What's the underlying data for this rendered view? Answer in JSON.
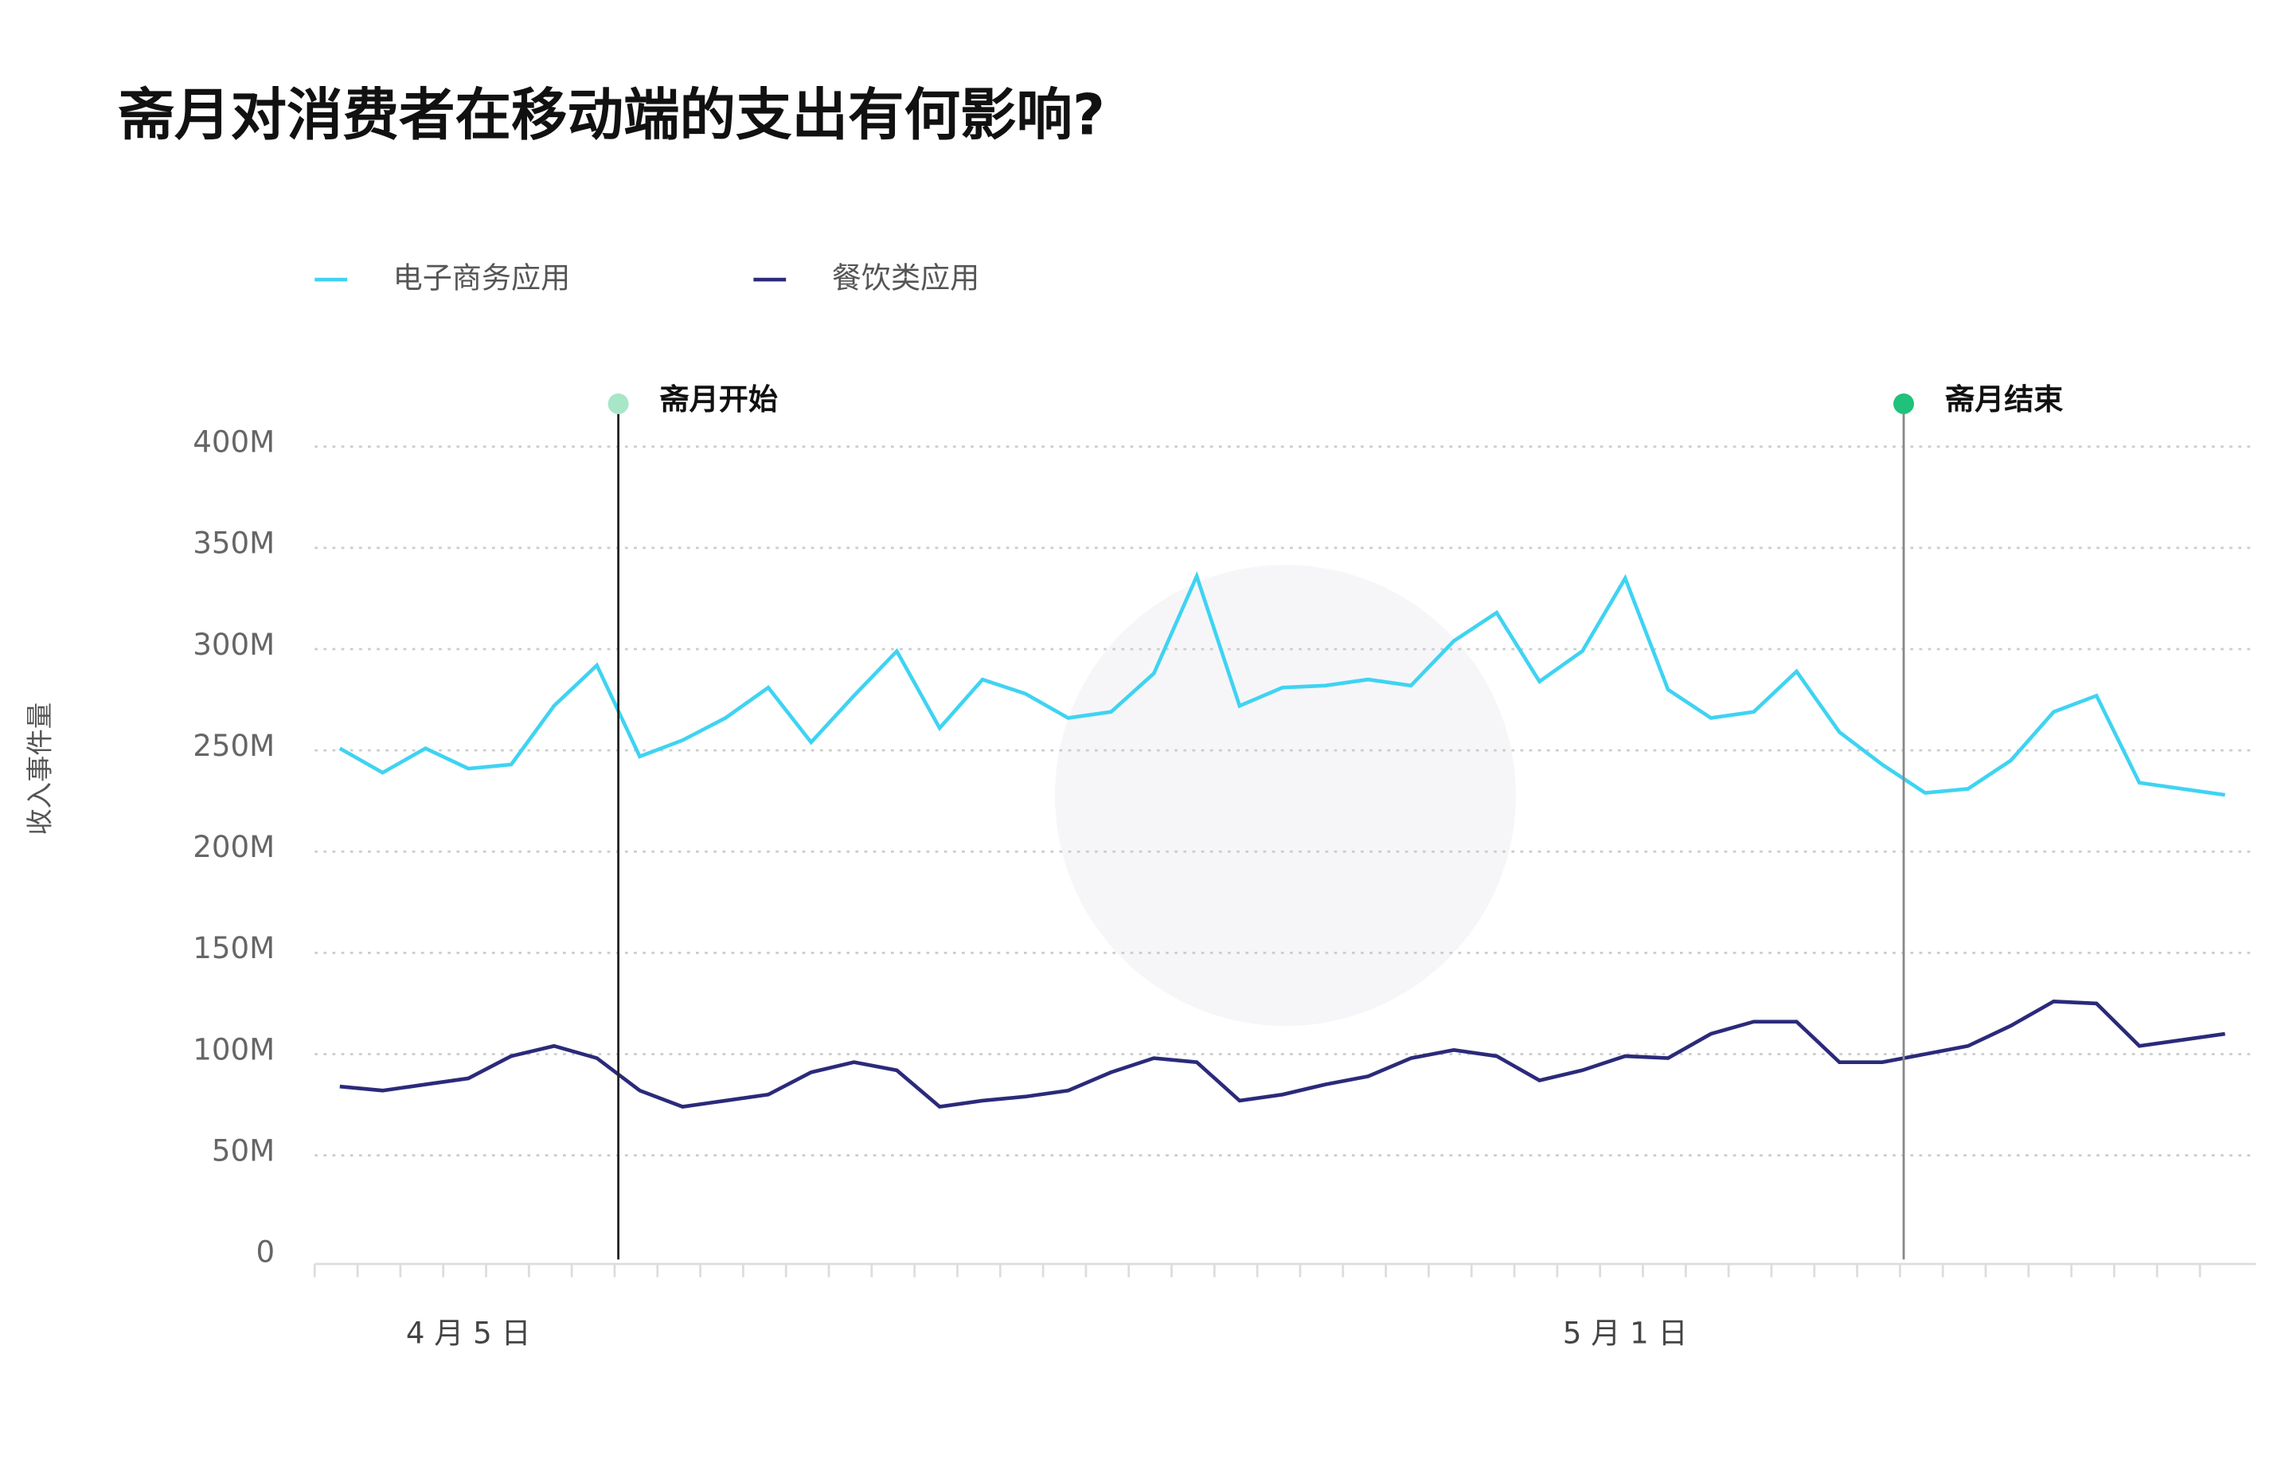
{
  "chart_data": {
    "type": "line",
    "title": "斋月对消费者在移动端的支出有何影响?",
    "y_label": "收入事件量",
    "categories": [
      null,
      null,
      null,
      "4 月 5 日",
      null,
      null,
      null,
      null,
      null,
      null,
      null,
      null,
      null,
      null,
      null,
      null,
      null,
      null,
      null,
      null,
      null,
      null,
      null,
      null,
      null,
      null,
      null,
      null,
      null,
      null,
      "5 月 1 日",
      null,
      null,
      null,
      null,
      null,
      null,
      null,
      null,
      null,
      null,
      null,
      null,
      null,
      null
    ],
    "series": [
      {
        "name": "电子商务应用",
        "color": "#3fd3f2",
        "values": [
          251,
          239,
          251,
          241,
          243,
          272,
          292,
          247,
          255,
          266,
          281,
          254,
          277,
          299,
          261,
          285,
          278,
          266,
          269,
          288,
          336,
          272,
          281,
          282,
          285,
          282,
          304,
          318,
          284,
          299,
          335,
          280,
          266,
          269,
          289,
          259,
          243,
          229,
          231,
          245,
          269,
          277,
          234,
          231,
          228
        ]
      },
      {
        "name": "餐饮类应用",
        "color": "#2b2a7a",
        "values": [
          84,
          82,
          85,
          88,
          99,
          104,
          98,
          82,
          74,
          77,
          80,
          91,
          96,
          92,
          74,
          77,
          79,
          82,
          91,
          98,
          96,
          77,
          80,
          85,
          89,
          98,
          102,
          99,
          87,
          92,
          99,
          98,
          110,
          116,
          116,
          96,
          96,
          100,
          104,
          114,
          126,
          125,
          104,
          107,
          110
        ]
      }
    ],
    "annotations": [
      {
        "x": 6.5,
        "text": "斋月开始",
        "color": "#a8e6c8",
        "line_color": "#222222"
      },
      {
        "x": 36.5,
        "text": "斋月结束",
        "color": "#1ec27a",
        "line_color": "#888888"
      }
    ],
    "ylim": [
      0,
      400
    ],
    "yticks": [
      0,
      {
        "value": 50,
        "label": "50M"
      },
      {
        "value": 100,
        "label": "100M"
      },
      {
        "value": 150,
        "label": "150M"
      },
      {
        "value": 200,
        "label": "200M"
      },
      {
        "value": 250,
        "label": "250M"
      },
      {
        "value": 300,
        "label": "300M"
      },
      {
        "value": 350,
        "label": "350M"
      },
      {
        "value": 400,
        "label": "400M"
      }
    ],
    "grid": true
  }
}
